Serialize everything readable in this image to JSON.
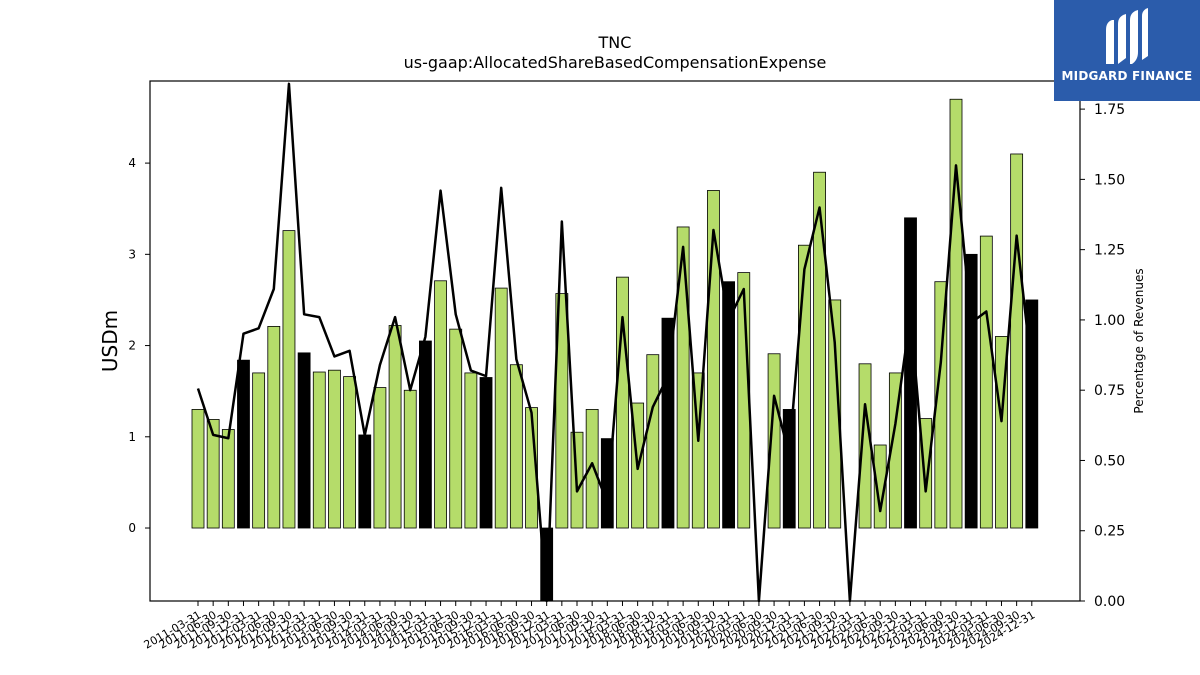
{
  "chart_data": {
    "type": "bar",
    "title": "TNC",
    "subtitle": "us-gaap:AllocatedShareBasedCompensationExpense",
    "ylabel": "USDm",
    "y2label": "Percentage of Revenues",
    "ylim": [
      -0.8,
      4.9
    ],
    "y2lim": [
      0.0,
      1.85
    ],
    "yticks": [
      0,
      1,
      2,
      3,
      4
    ],
    "y2ticks": [
      "0.00",
      "0.25",
      "0.50",
      "0.75",
      "1.00",
      "1.25",
      "1.50",
      "1.75"
    ],
    "grid": false,
    "legend": "none",
    "colors": {
      "normal": "#b5dc6a",
      "highlight": "#000000",
      "line": "#000000"
    },
    "categories": [
      "2011-03-31",
      "2011-06-30",
      "2011-09-30",
      "2011-12-31",
      "2012-03-31",
      "2012-06-30",
      "2012-09-30",
      "2012-12-31",
      "2013-03-31",
      "2013-06-30",
      "2013-09-30",
      "2013-12-31",
      "2014-03-31",
      "2014-06-30",
      "2014-09-30",
      "2014-12-31",
      "2015-03-31",
      "2015-06-30",
      "2015-09-30",
      "2015-12-31",
      "2016-03-31",
      "2016-06-30",
      "2016-09-30",
      "2016-12-31",
      "2017-03-31",
      "2017-06-30",
      "2017-09-30",
      "2017-12-31",
      "2018-03-31",
      "2018-06-30",
      "2018-09-30",
      "2018-12-31",
      "2019-03-31",
      "2019-06-30",
      "2019-09-30",
      "2019-12-31",
      "2020-03-31",
      "2020-06-30",
      "2020-09-30",
      "2020-12-31",
      "2021-03-31",
      "2021-06-30",
      "2021-09-30",
      "2021-12-31",
      "2022-03-31",
      "2022-06-30",
      "2022-09-30",
      "2022-12-31",
      "2023-03-31",
      "2023-06-30",
      "2023-09-30",
      "2023-12-31",
      "2024-03-31",
      "2024-06-30",
      "2024-09-30",
      "2024-12-31"
    ],
    "xtick_labels": [
      "2011-03-31",
      "2011-06-30",
      "2011-09-30",
      "2011-12-31",
      "2012-03-31",
      "2012-06-30",
      "2012-09-30",
      "2012-12-31",
      "2013-03-31",
      "2013-06-30",
      "2013-09-30",
      "2013-12-31",
      "2014-03-31",
      "2014-06-30",
      "2014-09-30",
      "2014-12-31",
      "2015-03-31",
      "2015-06-30",
      "2015-09-30",
      "2015-12-31",
      "2016-03-31",
      "2016-06-30",
      "2016-09-30",
      "2016-12-31",
      "2017-03-31",
      "2017-06-30",
      "2017-09-30",
      "2017-12-31",
      "2018-03-31",
      "2018-06-30",
      "2018-09-30",
      "2018-12-31",
      "2019-03-31",
      "2019-06-30",
      "2019-09-30",
      "2019-12-31",
      "2020-03-31",
      "2020-06-30",
      "2020-09-30",
      "2020-12-31",
      "2021-03-31",
      "2021-06-30",
      "2021-09-30",
      "2021-12-31",
      "2022-03-31",
      "2022-06-30",
      "2022-09-30",
      "2022-12-31",
      "2023-03-31",
      "2023-06-30",
      "2023-09-30",
      "2023-12-31",
      "2024-03-31",
      "2024-06-30",
      "2024-09-30",
      "2024-12-31"
    ],
    "series": [
      {
        "type": "bar",
        "axis": "left",
        "values": [
          1.3,
          1.19,
          1.08,
          1.84,
          1.7,
          2.21,
          3.26,
          1.92,
          1.71,
          1.73,
          1.66,
          1.02,
          1.54,
          2.22,
          1.51,
          2.05,
          2.71,
          2.18,
          1.7,
          1.65,
          2.63,
          1.79,
          1.32,
          -0.8,
          2.57,
          1.05,
          1.3,
          0.98,
          2.75,
          1.37,
          1.9,
          2.3,
          3.3,
          1.7,
          3.7,
          2.7,
          2.8,
          0.0,
          1.91,
          1.3,
          3.1,
          3.9,
          2.5,
          0.0,
          1.8,
          0.91,
          1.7,
          3.4,
          1.2,
          2.7,
          4.7,
          3.0,
          3.2,
          2.1,
          4.1,
          2.5
        ],
        "highlight": [
          false,
          false,
          false,
          true,
          false,
          false,
          false,
          true,
          false,
          false,
          false,
          true,
          false,
          false,
          false,
          true,
          false,
          false,
          false,
          true,
          false,
          false,
          false,
          true,
          false,
          false,
          false,
          true,
          false,
          false,
          false,
          true,
          false,
          false,
          false,
          true,
          false,
          false,
          false,
          true,
          false,
          false,
          false,
          true,
          false,
          false,
          false,
          true,
          false,
          false,
          false,
          true,
          false,
          false,
          false,
          true
        ]
      },
      {
        "type": "line",
        "axis": "right",
        "values": [
          0.756,
          0.591,
          0.579,
          0.951,
          0.97,
          1.11,
          1.84,
          1.02,
          1.01,
          0.87,
          0.89,
          0.59,
          0.84,
          1.01,
          0.75,
          0.94,
          1.46,
          1.02,
          0.82,
          0.8,
          1.47,
          0.86,
          0.67,
          0.0,
          1.35,
          0.39,
          0.49,
          0.35,
          1.01,
          0.47,
          0.69,
          0.8,
          1.26,
          0.57,
          1.32,
          1.0,
          1.11,
          0.0,
          0.73,
          0.52,
          1.18,
          1.4,
          0.92,
          0.0,
          0.7,
          0.32,
          0.63,
          1.02,
          0.39,
          0.85,
          1.55,
          0.99,
          1.03,
          0.64,
          1.3,
          0.82
        ]
      }
    ]
  },
  "logo": {
    "text": "MIDGARD FINANCE"
  }
}
